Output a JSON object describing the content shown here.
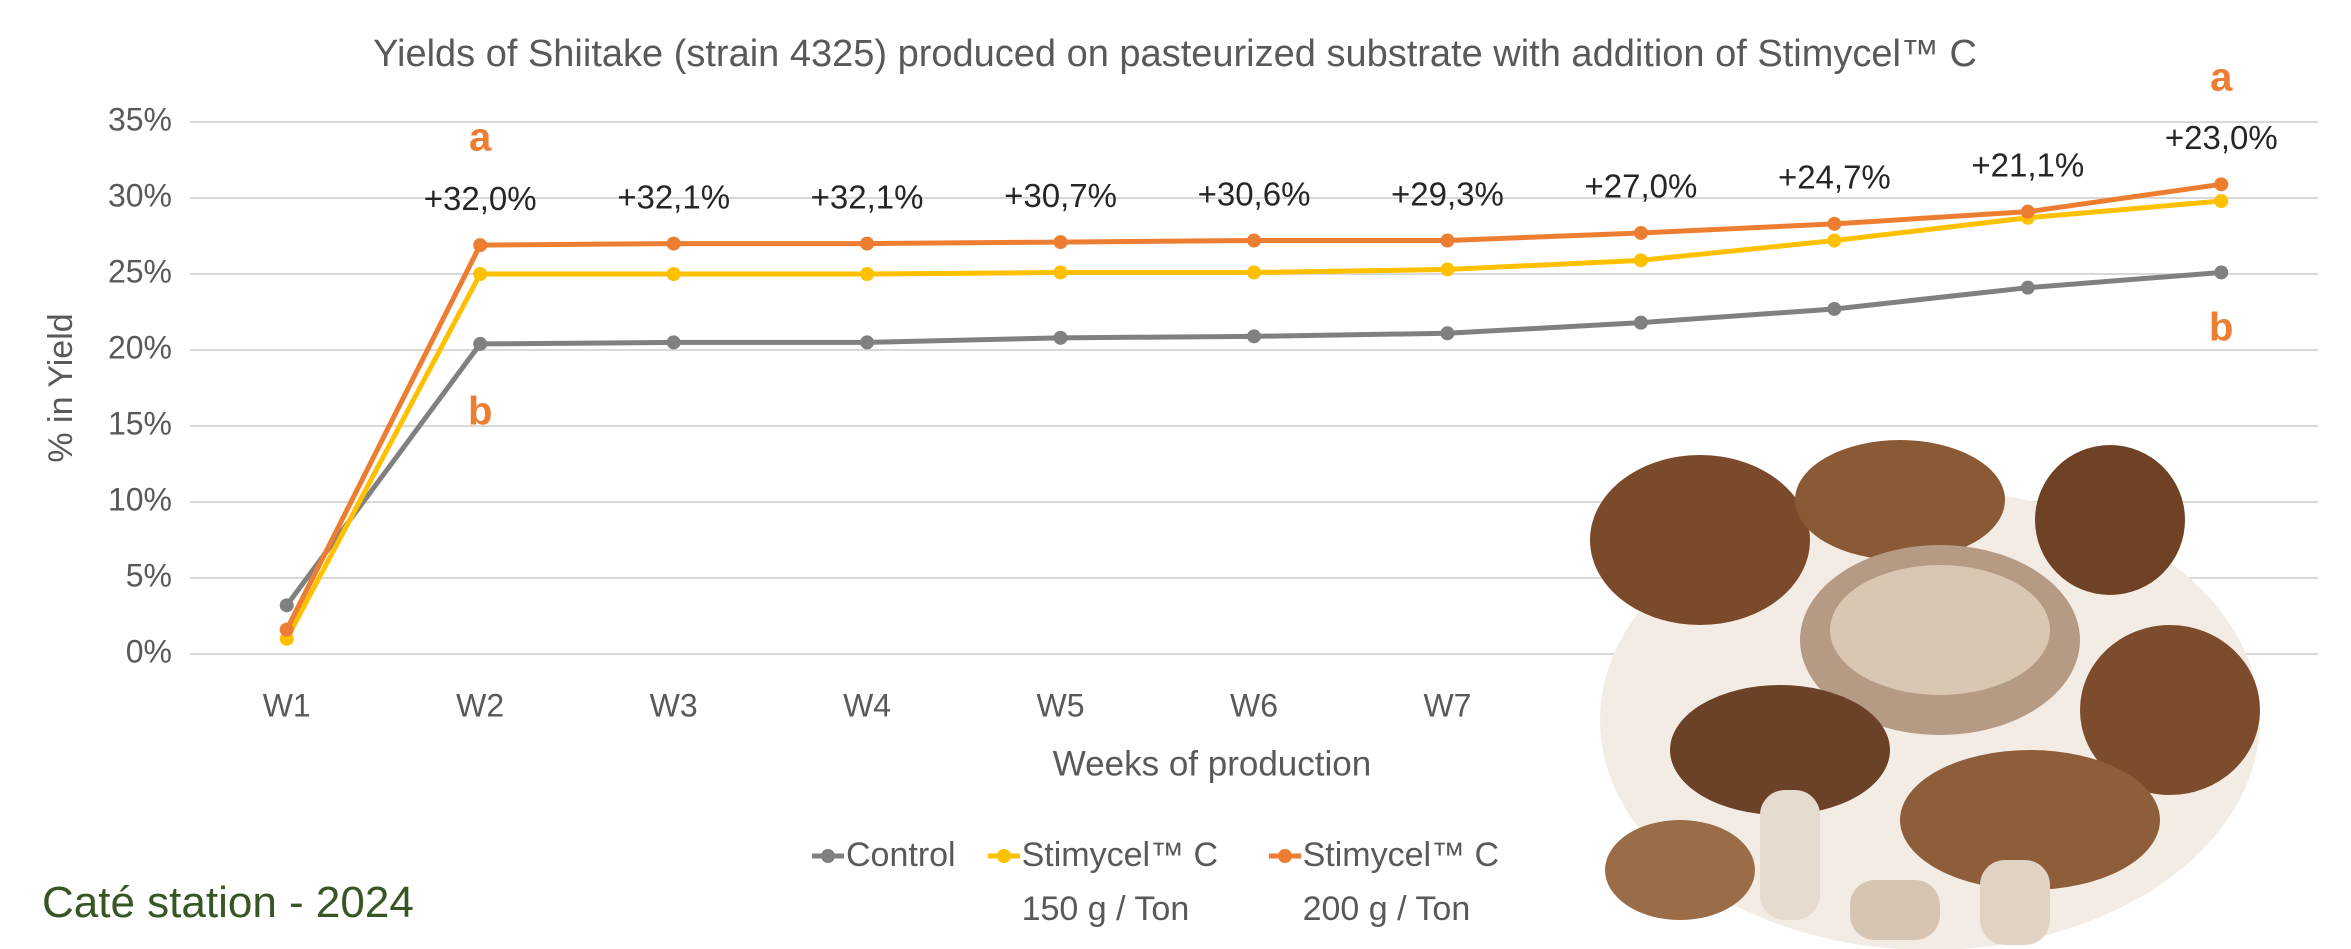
{
  "chart_data": {
    "type": "line",
    "title": "Yields of Shiitake (strain 4325) produced on pasteurized substrate with addition of Stimycel™ C",
    "x_label": "Weeks of production",
    "y_label": "% in Yield",
    "categories": [
      "W1",
      "W2",
      "W3",
      "W4",
      "W5",
      "W6",
      "W7",
      null,
      null,
      null,
      null
    ],
    "series": [
      {
        "name": "Control",
        "color": "#808080",
        "values": [
          3.2,
          20.4,
          20.5,
          20.5,
          20.8,
          20.9,
          21.1,
          21.8,
          22.7,
          24.1,
          25.1
        ]
      },
      {
        "name": "Stimycel™ C 150 g / Ton",
        "color": "#ffc000",
        "values": [
          1.0,
          25.0,
          25.0,
          25.0,
          25.1,
          25.1,
          25.3,
          25.9,
          27.2,
          28.7,
          29.8
        ]
      },
      {
        "name": "Stimycel™ C 200 g / Ton",
        "color": "#ed7d31",
        "values": [
          1.6,
          26.9,
          27.0,
          27.0,
          27.1,
          27.2,
          27.2,
          27.7,
          28.3,
          29.1,
          30.9
        ]
      }
    ],
    "annotations": [
      "+32,0%",
      "+32,1%",
      "+32,1%",
      "+30,7%",
      "+30,6%",
      "+29,3%",
      "+27,0%",
      "+24,7%",
      "+21,1%",
      "+23,0%"
    ],
    "letters": [
      "a",
      "b",
      "a",
      "b"
    ],
    "ylim": [
      0,
      35
    ],
    "yticks": [
      {
        "value": 0,
        "label": "0%"
      },
      {
        "value": 5,
        "label": "5%"
      },
      {
        "value": 10,
        "label": "10%"
      },
      {
        "value": 15,
        "label": "15%"
      },
      {
        "value": 20,
        "label": "20%"
      },
      {
        "value": 25,
        "label": "25%"
      },
      {
        "value": 30,
        "label": "30%"
      },
      {
        "value": 35,
        "label": "35%"
      }
    ],
    "grid": true,
    "legend": "bottom",
    "footer": "Caté station - 2024"
  }
}
